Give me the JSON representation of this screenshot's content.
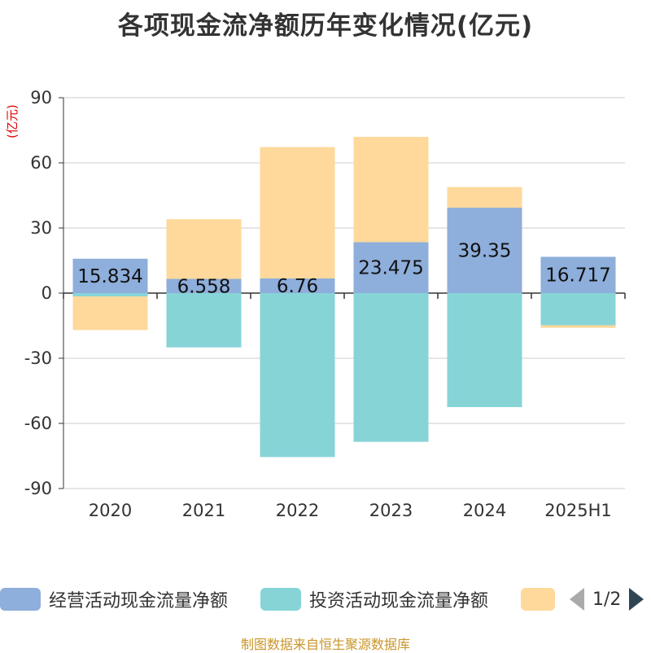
{
  "chart_data": {
    "type": "bar",
    "stacked": true,
    "title": "各项现金流净额历年变化情况(亿元)",
    "ylabel": "(亿元)",
    "categories": [
      "2020",
      "2021",
      "2022",
      "2023",
      "2024",
      "2025H1"
    ],
    "ylim": [
      -90,
      90
    ],
    "yticks": [
      90,
      60,
      30,
      0,
      -30,
      -60,
      -90
    ],
    "grid": true,
    "series": [
      {
        "name": "经营活动现金流量净额",
        "color": "#8eaedb",
        "values": [
          15.834,
          6.558,
          6.76,
          23.475,
          39.35,
          16.717
        ],
        "labels": [
          "15.834",
          "6.558",
          "6.76",
          "23.475",
          "39.35",
          "16.717"
        ]
      },
      {
        "name": "投资活动现金流量净额",
        "color": "#87d4d7",
        "values": [
          -1.5,
          -25,
          -75.5,
          -68.5,
          -52.5,
          -14.8
        ],
        "labels": []
      },
      {
        "name": "",
        "color": "#fed99b",
        "values": [
          -15.5,
          27.5,
          60.5,
          48.5,
          9.5,
          -1.2
        ],
        "labels": []
      }
    ],
    "legend_position": "bottom",
    "legend_page": "1/2"
  },
  "source_note": "制图数据来自恒生聚源数据库"
}
